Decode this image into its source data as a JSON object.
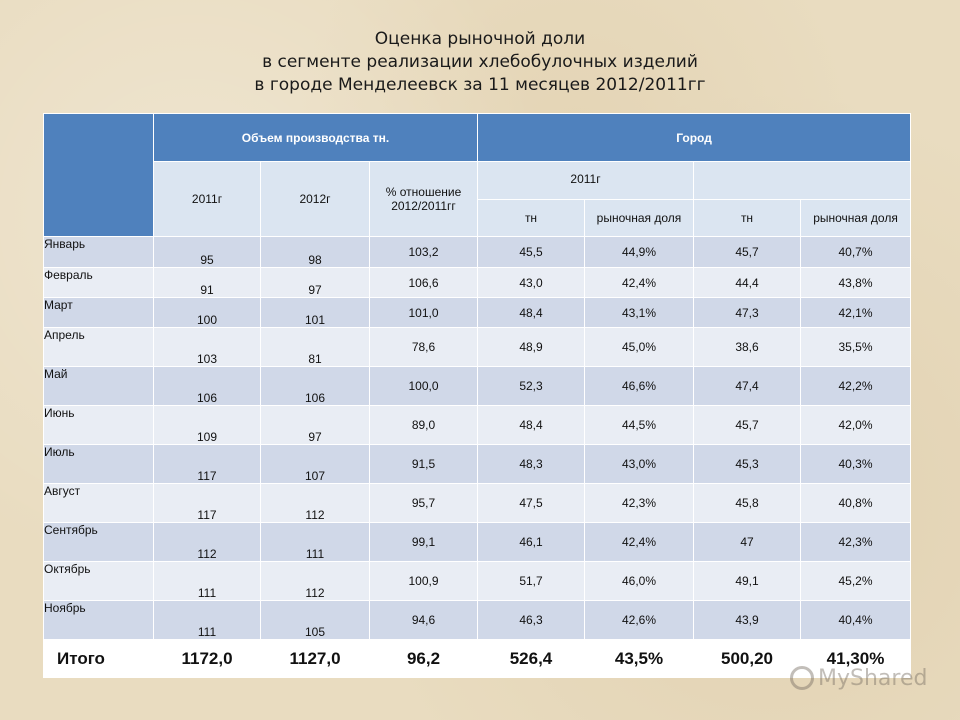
{
  "title": {
    "line1": "Оценка рыночной доли",
    "line2": "в сегменте реализации хлебобулочных изделий",
    "line3": "в городе Менделеевск за 11 месяцев 2012/2011гг"
  },
  "header": {
    "production": "Объем производства тн.",
    "city": "Город",
    "col_2011": "2011г",
    "col_2012": "2012г",
    "col_pct": "% отношение 2012/2011гг",
    "city_2011": "2011г",
    "city_2012": "",
    "tn_1": "тн",
    "share_1": "рыночная доля",
    "tn_2": "тн",
    "share_2": "рыночная доля"
  },
  "rows": [
    {
      "month": "Январь",
      "p2011": "95",
      "p2012": "98",
      "pct": "103,2",
      "tn2011": "45,5",
      "share2011": "44,9%",
      "tn2012": "45,7",
      "share2012": "40,7%"
    },
    {
      "month": "Февраль",
      "p2011": "91",
      "p2012": "97",
      "pct": "106,6",
      "tn2011": "43,0",
      "share2011": "42,4%",
      "tn2012": "44,4",
      "share2012": "43,8%"
    },
    {
      "month": "Март",
      "p2011": "100",
      "p2012": "101",
      "pct": "101,0",
      "tn2011": "48,4",
      "share2011": "43,1%",
      "tn2012": "47,3",
      "share2012": "42,1%"
    },
    {
      "month": "Апрель",
      "p2011": "103",
      "p2012": "81",
      "pct": "78,6",
      "tn2011": "48,9",
      "share2011": "45,0%",
      "tn2012": "38,6",
      "share2012": "35,5%"
    },
    {
      "month": "Май",
      "p2011": "106",
      "p2012": "106",
      "pct": "100,0",
      "tn2011": "52,3",
      "share2011": "46,6%",
      "tn2012": "47,4",
      "share2012": "42,2%"
    },
    {
      "month": "Июнь",
      "p2011": "109",
      "p2012": "97",
      "pct": "89,0",
      "tn2011": "48,4",
      "share2011": "44,5%",
      "tn2012": "45,7",
      "share2012": "42,0%"
    },
    {
      "month": "Июль",
      "p2011": "117",
      "p2012": "107",
      "pct": "91,5",
      "tn2011": "48,3",
      "share2011": "43,0%",
      "tn2012": "45,3",
      "share2012": "40,3%"
    },
    {
      "month": "Август",
      "p2011": "117",
      "p2012": "112",
      "pct": "95,7",
      "tn2011": "47,5",
      "share2011": "42,3%",
      "tn2012": "45,8",
      "share2012": "40,8%"
    },
    {
      "month": "Сентябрь",
      "p2011": "112",
      "p2012": "111",
      "pct": "99,1",
      "tn2011": "46,1",
      "share2011": "42,4%",
      "tn2012": "47",
      "share2012": "42,3%"
    },
    {
      "month": "Октябрь",
      "p2011": "111",
      "p2012": "112",
      "pct": "100,9",
      "tn2011": "51,7",
      "share2011": "46,0%",
      "tn2012": "49,1",
      "share2012": "45,2%"
    },
    {
      "month": "Ноябрь",
      "p2011": "111",
      "p2012": "105",
      "pct": "94,6",
      "tn2011": "46,3",
      "share2011": "42,6%",
      "tn2012": "43,9",
      "share2012": "40,4%"
    }
  ],
  "total": {
    "label": "Итого",
    "p2011": "1172,0",
    "p2012": "1127,0",
    "pct": "96,2",
    "tn2011": "526,4",
    "share2011": "43,5%",
    "tn2012": "500,20",
    "share2012": "41,30%"
  },
  "watermark": "MyShared",
  "colors": {
    "header_blue": "#4f81bd",
    "row_dark": "#d0d8e8",
    "row_light": "#e9edf4",
    "subheader": "#dbe5f1"
  }
}
